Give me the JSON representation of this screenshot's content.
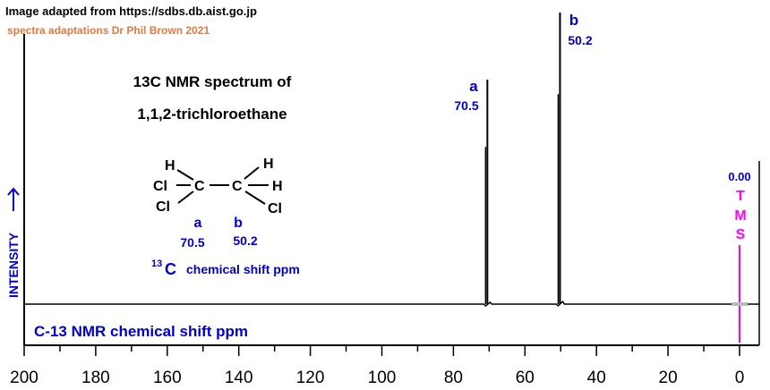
{
  "credits": {
    "source": "Image adapted from https://sdbs.db.aist.go.jp",
    "adaptation": "spectra adaptations Dr Phil Brown 2021"
  },
  "title_line1": "13C NMR spectrum of",
  "title_line2": "1,1,2-trichloroethane",
  "molecule": {
    "atoms": {
      "h_left": "H",
      "cl_left_top": "Cl",
      "c_a": "C",
      "c_b": "C",
      "h_right_top": "H",
      "h_right": "H",
      "cl_left_bottom": "Cl",
      "cl_right_bottom": "Cl"
    },
    "label_a": "a",
    "label_b": "b",
    "shift_a": "70.5",
    "shift_b": "50.2"
  },
  "shift_caption": {
    "superscript": "13",
    "element": "C",
    "rest": "chemical shift ppm"
  },
  "tms": {
    "value": "0.00",
    "letters": [
      "T",
      "M",
      "S"
    ]
  },
  "colors": {
    "axis": "#000000",
    "spectrum": "#000000",
    "labels": "#0000cc",
    "credit": "#e07a40",
    "tms": "#ff00ff"
  },
  "chart_data": {
    "type": "line",
    "xlabel": "C-13 NMR chemical shift ppm",
    "ylabel": "INTENSITY",
    "xlim": [
      200,
      -5
    ],
    "x_ticks": [
      200,
      180,
      160,
      140,
      120,
      100,
      80,
      60,
      40,
      20,
      0
    ],
    "y_relative_max": 1.0,
    "peaks": [
      {
        "label": "a",
        "shift": 70.5,
        "shift_label": "70.5",
        "relative_intensity": 0.77
      },
      {
        "label": "b",
        "shift": 50.2,
        "shift_label": "50.2",
        "relative_intensity": 1.0
      }
    ],
    "reference": {
      "name": "TMS",
      "shift": 0.0
    }
  }
}
